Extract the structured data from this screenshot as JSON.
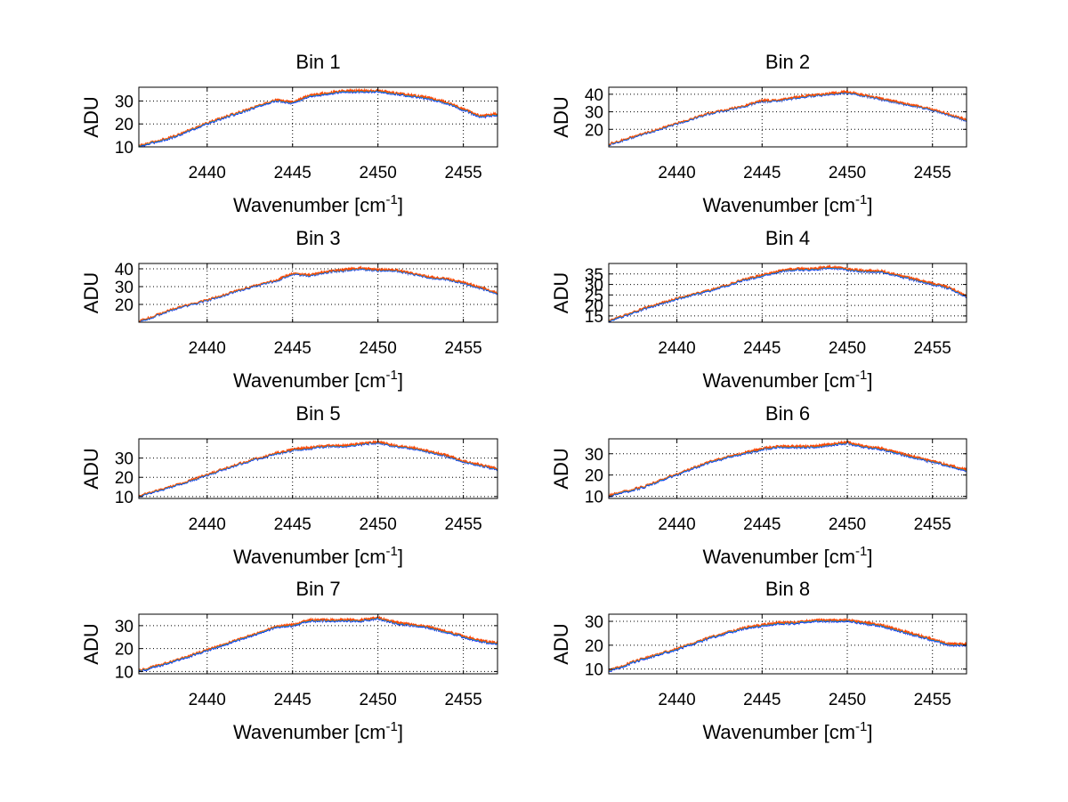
{
  "chart_data": [
    {
      "type": "line",
      "title": "Bin 1",
      "xlabel": "Wavenumber [cm",
      "xlabel_sup": "-1",
      "xlabel_end": "]",
      "ylabel": "ADU",
      "xlim": [
        2436,
        2457
      ],
      "ylim": [
        10,
        36
      ],
      "xticks": [
        2440,
        2445,
        2450,
        2455
      ],
      "yticks": [
        10,
        20,
        30
      ],
      "grid": true,
      "x": [
        2436,
        2438,
        2440,
        2442,
        2444,
        2445,
        2446,
        2447,
        2448,
        2449,
        2450,
        2451,
        2452,
        2453,
        2454,
        2455,
        2456,
        2457
      ],
      "series": [
        {
          "color": "#0000ff",
          "values": [
            10,
            14,
            20,
            25,
            30,
            29,
            32,
            33,
            34,
            34,
            34,
            33,
            32,
            31,
            29,
            26,
            23,
            24
          ]
        },
        {
          "color": "#00bfbf",
          "values": [
            10.3,
            14.3,
            20.3,
            25.3,
            30.3,
            29.3,
            32.3,
            33.3,
            34.3,
            34.3,
            34.3,
            33.3,
            32.3,
            31.3,
            29.3,
            26.3,
            23.3,
            24.3
          ]
        },
        {
          "color": "#ff4500",
          "values": [
            10.6,
            14.6,
            20.6,
            25.6,
            30.6,
            29.6,
            32.6,
            33.6,
            34.6,
            34.6,
            34.6,
            33.6,
            32.6,
            31.6,
            29.6,
            26.6,
            23.6,
            24.6
          ]
        }
      ]
    },
    {
      "type": "line",
      "title": "Bin 2",
      "xlabel": "Wavenumber [cm",
      "xlabel_sup": "-1",
      "xlabel_end": "]",
      "ylabel": "ADU",
      "xlim": [
        2436,
        2457
      ],
      "ylim": [
        10,
        44
      ],
      "xticks": [
        2440,
        2445,
        2450,
        2455
      ],
      "yticks": [
        20,
        30,
        40
      ],
      "grid": true,
      "x": [
        2436,
        2438,
        2440,
        2442,
        2444,
        2445,
        2446,
        2447,
        2448,
        2449,
        2450,
        2451,
        2452,
        2453,
        2454,
        2455,
        2456,
        2457
      ],
      "series": [
        {
          "color": "#0000ff",
          "values": [
            11,
            17,
            23,
            29,
            33,
            36,
            36,
            38,
            39,
            40,
            41,
            39,
            37,
            35,
            33,
            31,
            28,
            25
          ]
        },
        {
          "color": "#00bfbf",
          "values": [
            11.3,
            17.3,
            23.3,
            29.3,
            33.3,
            36.3,
            36.3,
            38.3,
            39.3,
            40.3,
            41.3,
            39.3,
            37.3,
            35.3,
            33.3,
            31.3,
            28.3,
            25.3
          ]
        },
        {
          "color": "#ff4500",
          "values": [
            11.6,
            17.6,
            23.6,
            29.6,
            33.6,
            36.6,
            36.6,
            38.6,
            39.6,
            40.6,
            41.6,
            39.6,
            37.6,
            35.6,
            33.6,
            31.6,
            28.6,
            25.6
          ]
        }
      ]
    },
    {
      "type": "line",
      "title": "Bin 3",
      "xlabel": "Wavenumber [cm",
      "xlabel_sup": "-1",
      "xlabel_end": "]",
      "ylabel": "ADU",
      "xlim": [
        2436,
        2457
      ],
      "ylim": [
        10,
        43
      ],
      "xticks": [
        2440,
        2445,
        2450,
        2455
      ],
      "yticks": [
        20,
        30,
        40
      ],
      "grid": true,
      "x": [
        2436,
        2438,
        2440,
        2442,
        2444,
        2445,
        2446,
        2447,
        2448,
        2449,
        2450,
        2451,
        2452,
        2453,
        2454,
        2455,
        2456,
        2457
      ],
      "series": [
        {
          "color": "#0000ff",
          "values": [
            10,
            17,
            22,
            28,
            33,
            37,
            36,
            38,
            39,
            40,
            39,
            39,
            37,
            35,
            34,
            32,
            29,
            26
          ]
        },
        {
          "color": "#00bfbf",
          "values": [
            10.3,
            17.3,
            22.3,
            28.3,
            33.3,
            37.3,
            36.3,
            38.3,
            39.3,
            40.3,
            39.3,
            39.3,
            37.3,
            35.3,
            34.3,
            32.3,
            29.3,
            26.3
          ]
        },
        {
          "color": "#ff4500",
          "values": [
            10.6,
            17.6,
            22.6,
            28.6,
            33.6,
            37.6,
            36.6,
            38.6,
            39.6,
            40.6,
            39.6,
            39.6,
            37.6,
            35.6,
            34.6,
            32.6,
            29.6,
            26.6
          ]
        }
      ]
    },
    {
      "type": "line",
      "title": "Bin 4",
      "xlabel": "Wavenumber [cm",
      "xlabel_sup": "-1",
      "xlabel_end": "]",
      "ylabel": "ADU",
      "xlim": [
        2436,
        2457
      ],
      "ylim": [
        12,
        40
      ],
      "xticks": [
        2440,
        2445,
        2450,
        2455
      ],
      "yticks": [
        15,
        20,
        25,
        30,
        35
      ],
      "grid": true,
      "x": [
        2436,
        2438,
        2440,
        2442,
        2444,
        2445,
        2446,
        2447,
        2448,
        2449,
        2450,
        2451,
        2452,
        2453,
        2454,
        2455,
        2456,
        2457
      ],
      "series": [
        {
          "color": "#0000ff",
          "values": [
            12,
            18,
            23,
            27,
            32,
            34,
            36,
            37,
            37,
            38,
            37,
            36,
            36,
            34,
            32,
            30,
            28,
            24
          ]
        },
        {
          "color": "#00bfbf",
          "values": [
            12.3,
            18.3,
            23.3,
            27.3,
            32.3,
            34.3,
            36.3,
            37.3,
            37.3,
            38.3,
            37.3,
            36.3,
            36.3,
            34.3,
            32.3,
            30.3,
            28.3,
            24.3
          ]
        },
        {
          "color": "#ff4500",
          "values": [
            12.6,
            18.6,
            23.6,
            27.6,
            32.6,
            34.6,
            36.6,
            37.6,
            37.6,
            38.6,
            37.6,
            36.6,
            36.6,
            34.6,
            32.6,
            30.6,
            28.6,
            24.6
          ]
        }
      ]
    },
    {
      "type": "line",
      "title": "Bin 5",
      "xlabel": "Wavenumber [cm",
      "xlabel_sup": "-1",
      "xlabel_end": "]",
      "ylabel": "ADU",
      "xlim": [
        2436,
        2457
      ],
      "ylim": [
        9,
        40
      ],
      "xticks": [
        2440,
        2445,
        2450,
        2455
      ],
      "yticks": [
        10,
        20,
        30
      ],
      "grid": true,
      "x": [
        2436,
        2438,
        2440,
        2442,
        2444,
        2445,
        2446,
        2447,
        2448,
        2449,
        2450,
        2451,
        2452,
        2453,
        2454,
        2455,
        2456,
        2457
      ],
      "series": [
        {
          "color": "#0000ff",
          "values": [
            10,
            15,
            21,
            27,
            32,
            34,
            35,
            36,
            36,
            37,
            38,
            36,
            35,
            33,
            31,
            28,
            26,
            24
          ]
        },
        {
          "color": "#00bfbf",
          "values": [
            10.3,
            15.3,
            21.3,
            27.3,
            32.3,
            34.3,
            35.3,
            36.3,
            36.3,
            37.3,
            38.3,
            36.3,
            35.3,
            33.3,
            31.3,
            28.3,
            26.3,
            24.3
          ]
        },
        {
          "color": "#ff4500",
          "values": [
            10.6,
            15.6,
            21.6,
            27.6,
            32.6,
            34.6,
            35.6,
            36.6,
            36.6,
            37.6,
            38.6,
            36.6,
            35.6,
            33.6,
            31.6,
            28.6,
            26.6,
            24.6
          ]
        }
      ]
    },
    {
      "type": "line",
      "title": "Bin 6",
      "xlabel": "Wavenumber [cm",
      "xlabel_sup": "-1",
      "xlabel_end": "]",
      "ylabel": "ADU",
      "xlim": [
        2436,
        2457
      ],
      "ylim": [
        9,
        37
      ],
      "xticks": [
        2440,
        2445,
        2450,
        2455
      ],
      "yticks": [
        10,
        20,
        30
      ],
      "grid": true,
      "x": [
        2436,
        2438,
        2440,
        2442,
        2444,
        2445,
        2446,
        2447,
        2448,
        2449,
        2450,
        2451,
        2452,
        2453,
        2454,
        2455,
        2456,
        2457
      ],
      "series": [
        {
          "color": "#0000ff",
          "values": [
            10,
            14,
            20,
            26,
            30,
            32,
            33,
            33,
            33,
            34,
            35,
            33,
            32,
            30,
            28,
            26,
            24,
            22
          ]
        },
        {
          "color": "#00bfbf",
          "values": [
            10.3,
            14.3,
            20.3,
            26.3,
            30.3,
            32.3,
            33.3,
            33.3,
            33.3,
            34.3,
            35.3,
            33.3,
            32.3,
            30.3,
            28.3,
            26.3,
            24.3,
            22.3
          ]
        },
        {
          "color": "#ff4500",
          "values": [
            10.6,
            14.6,
            20.6,
            26.6,
            30.6,
            32.6,
            33.6,
            33.6,
            33.6,
            34.6,
            35.6,
            33.6,
            32.6,
            30.6,
            28.6,
            26.6,
            24.6,
            22.6
          ]
        }
      ]
    },
    {
      "type": "line",
      "title": "Bin 7",
      "xlabel": "Wavenumber [cm",
      "xlabel_sup": "-1",
      "xlabel_end": "]",
      "ylabel": "ADU",
      "xlim": [
        2436,
        2457
      ],
      "ylim": [
        9,
        35
      ],
      "xticks": [
        2440,
        2445,
        2450,
        2455
      ],
      "yticks": [
        10,
        20,
        30
      ],
      "grid": true,
      "x": [
        2436,
        2438,
        2440,
        2442,
        2444,
        2445,
        2446,
        2447,
        2448,
        2449,
        2450,
        2451,
        2452,
        2453,
        2454,
        2455,
        2456,
        2457
      ],
      "series": [
        {
          "color": "#0000ff",
          "values": [
            10,
            14,
            19,
            24,
            29,
            30,
            32,
            32,
            32,
            32,
            33,
            31,
            30,
            29,
            27,
            25,
            23,
            22
          ]
        },
        {
          "color": "#00bfbf",
          "values": [
            10.3,
            14.3,
            19.3,
            24.3,
            29.3,
            30.3,
            32.3,
            32.3,
            32.3,
            32.3,
            33.3,
            31.3,
            30.3,
            29.3,
            27.3,
            25.3,
            23.3,
            22.3
          ]
        },
        {
          "color": "#ff4500",
          "values": [
            10.6,
            14.6,
            19.6,
            24.6,
            29.6,
            30.6,
            32.6,
            32.6,
            32.6,
            32.6,
            33.6,
            31.6,
            30.6,
            29.6,
            27.6,
            25.6,
            23.6,
            22.6
          ]
        }
      ]
    },
    {
      "type": "line",
      "title": "Bin 8",
      "xlabel": "Wavenumber [cm",
      "xlabel_sup": "-1",
      "xlabel_end": "]",
      "ylabel": "ADU",
      "xlim": [
        2436,
        2457
      ],
      "ylim": [
        8,
        33
      ],
      "xticks": [
        2440,
        2445,
        2450,
        2455
      ],
      "yticks": [
        10,
        20,
        30
      ],
      "grid": true,
      "x": [
        2436,
        2438,
        2440,
        2442,
        2444,
        2445,
        2446,
        2447,
        2448,
        2449,
        2450,
        2451,
        2452,
        2453,
        2454,
        2455,
        2456,
        2457
      ],
      "series": [
        {
          "color": "#0000ff",
          "values": [
            9,
            14,
            18,
            23,
            27,
            28,
            29,
            29,
            30,
            30,
            30,
            29,
            28,
            26,
            24,
            22,
            20,
            20
          ]
        },
        {
          "color": "#00bfbf",
          "values": [
            9.3,
            14.3,
            18.3,
            23.3,
            27.3,
            28.3,
            29.3,
            29.3,
            30.3,
            30.3,
            30.3,
            29.3,
            28.3,
            26.3,
            24.3,
            22.3,
            20.3,
            20.3
          ]
        },
        {
          "color": "#ff4500",
          "values": [
            9.6,
            14.6,
            18.6,
            23.6,
            27.6,
            28.6,
            29.6,
            29.6,
            30.6,
            30.6,
            30.6,
            29.6,
            28.6,
            26.6,
            24.6,
            22.6,
            20.6,
            20.6
          ]
        }
      ]
    }
  ]
}
